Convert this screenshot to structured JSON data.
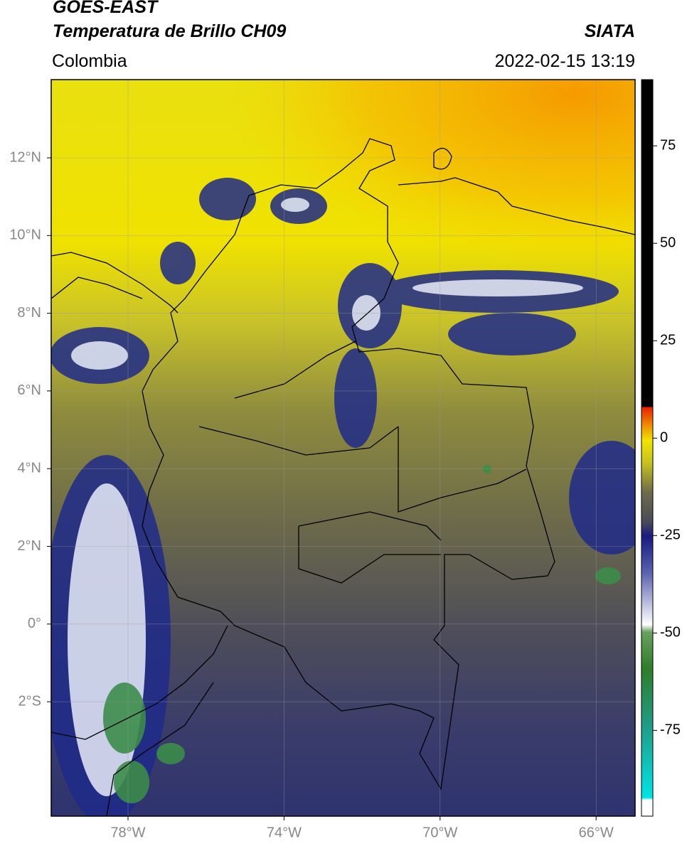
{
  "header": {
    "title": "GOES-EAST",
    "subtitle": "Temperatura de Brillo CH09",
    "source": "SIATA",
    "region": "Colombia",
    "datetime": "2022-02-15 13:19"
  },
  "map": {
    "lat_labels": [
      "12°N",
      "10°N",
      "8°N",
      "6°N",
      "4°N",
      "2°N",
      "0°",
      "2°S"
    ],
    "lon_labels": [
      "78°W",
      "74°W",
      "70°W",
      "66°W"
    ]
  },
  "colorbar": {
    "range": [
      -97,
      92
    ],
    "ticks": [
      75,
      50,
      25,
      0,
      -25,
      -50,
      -75
    ]
  }
}
